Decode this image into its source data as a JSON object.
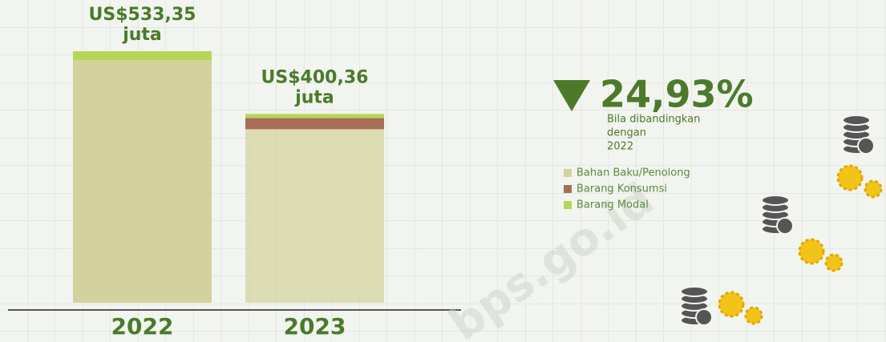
{
  "chart_data": {
    "type": "stacked_bar",
    "categories": [
      "2022",
      "2023"
    ],
    "series": [
      {
        "name": "Bahan Baku/Penolong",
        "color": "#d3d29c",
        "values": [
          514.6,
          368.0
        ]
      },
      {
        "name": "Barang Konsumsi",
        "color": "#a86d55",
        "values": [
          0,
          23.8
        ]
      },
      {
        "name": "Barang Modal",
        "color": "#b6d65a",
        "values": [
          18.75,
          8.56
        ]
      }
    ],
    "totals": [
      533.35,
      400.36
    ],
    "total_labels": [
      [
        "US$533,35",
        "juta"
      ],
      [
        "US$400,36",
        "juta"
      ]
    ],
    "ylim": [
      0,
      642
    ],
    "change": {
      "label": "24,93%",
      "note": [
        "Bila dibandingkan",
        "dengan",
        "2022"
      ]
    },
    "watermark": "bps.go.id"
  }
}
